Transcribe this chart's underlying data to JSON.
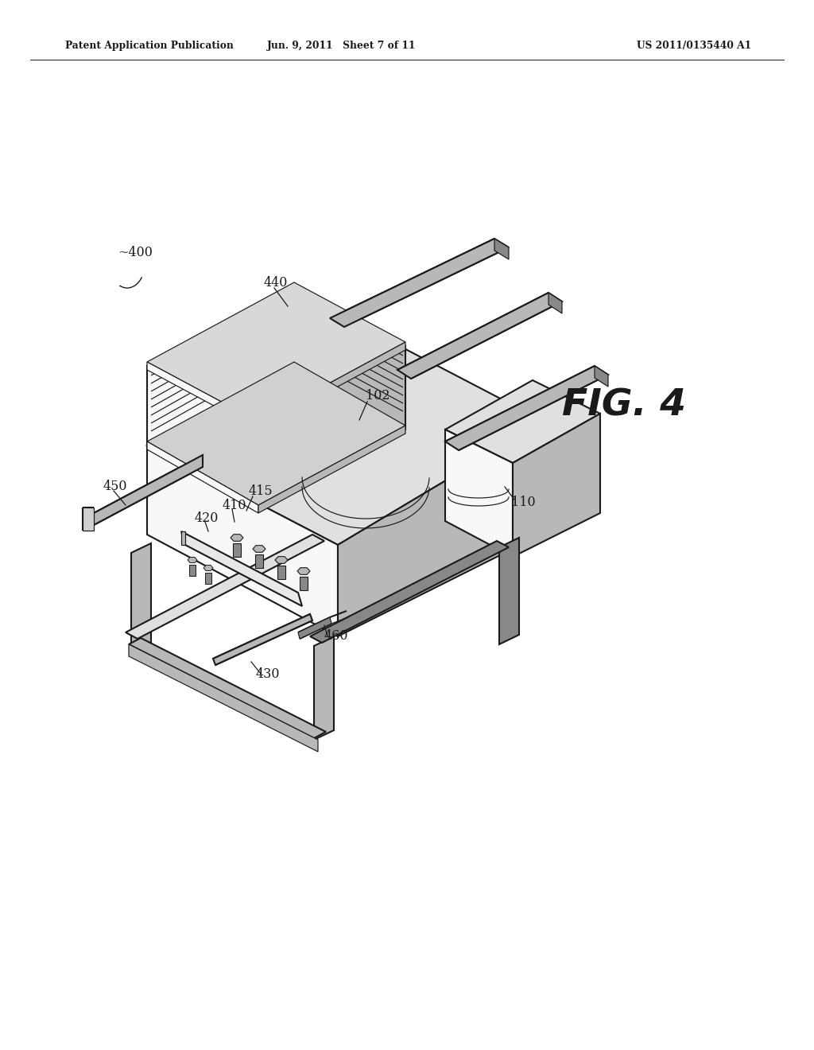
{
  "bg_color": "#ffffff",
  "line_color": "#1a1a1a",
  "header_left": "Patent Application Publication",
  "header_mid": "Jun. 9, 2011   Sheet 7 of 11",
  "header_right": "US 2011/0135440 A1",
  "fig_label": "FIG. 4",
  "light_gray": "#e0e0e0",
  "med_gray": "#b8b8b8",
  "dark_gray": "#888888",
  "white_face": "#f8f8f8",
  "lw_main": 1.5,
  "lw_thin": 0.85,
  "lw_thick": 2.2
}
